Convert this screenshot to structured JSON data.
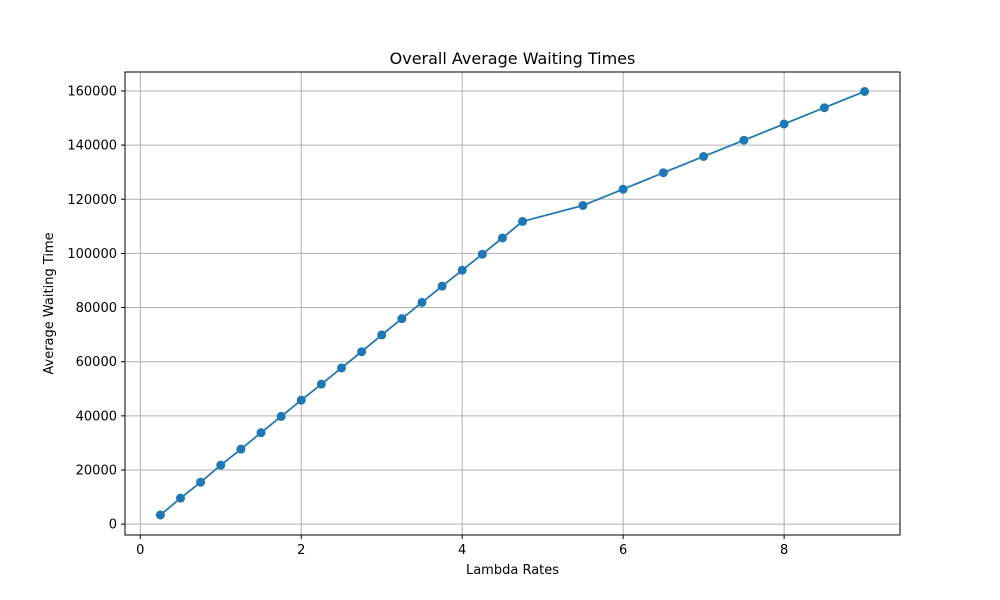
{
  "chart_data": {
    "type": "line",
    "title": "Overall Average Waiting Times",
    "xlabel": "Lambda Rates",
    "ylabel": "Average Waiting Time",
    "xlim": [
      -0.19,
      9.44
    ],
    "ylim": [
      -4000,
      167000
    ],
    "xticks": [
      0,
      2,
      4,
      6,
      8
    ],
    "yticks": [
      0,
      20000,
      40000,
      60000,
      80000,
      100000,
      120000,
      140000,
      160000
    ],
    "grid": true,
    "marker": "circle",
    "color": "#1f77b4",
    "series": [
      {
        "x": [
          0.25,
          0.5,
          0.75,
          1.0,
          1.25,
          1.5,
          1.75,
          2.0,
          2.25,
          2.5,
          2.75,
          3.0,
          3.25,
          3.5,
          3.75,
          4.0,
          4.25,
          4.5,
          4.75,
          5.5,
          6.0,
          6.5,
          7.0,
          7.5,
          8.0,
          8.5,
          9.0
        ],
        "values": [
          3400,
          9600,
          15500,
          21800,
          27700,
          33800,
          39800,
          45800,
          51700,
          57700,
          63700,
          69900,
          75900,
          81900,
          87900,
          93800,
          99700,
          105700,
          111800,
          117700,
          123700,
          129800,
          135800,
          141800,
          147800,
          153800,
          159800
        ]
      }
    ]
  }
}
